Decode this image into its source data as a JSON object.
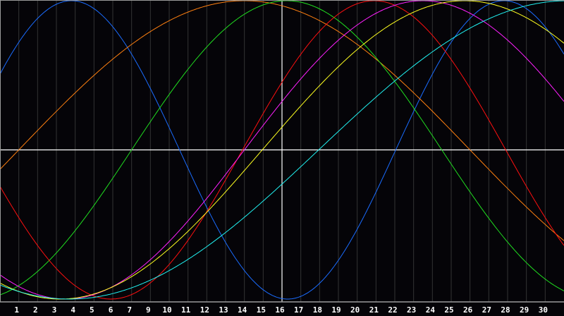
{
  "chart_data": {
    "type": "line",
    "xlim": [
      0,
      30
    ],
    "ylim": [
      -100,
      100
    ],
    "grid": true,
    "today_marker_day": 15,
    "x_tick_labels": [
      "1",
      "2",
      "3",
      "4",
      "5",
      "6",
      "7",
      "9",
      "10",
      "11",
      "12",
      "13",
      "14",
      "15",
      "16",
      "17",
      "18",
      "19",
      "20",
      "21",
      "22",
      "23",
      "24",
      "25",
      "26",
      "27",
      "28",
      "29",
      "30"
    ],
    "series": [
      {
        "color": "#1a6cff",
        "period_days": 23,
        "peak_day": 3.8
      },
      {
        "color": "#ff8010",
        "period_days": 48,
        "peak_day": 13.0
      },
      {
        "color": "#20e020",
        "period_days": 33,
        "peak_day": 15.25
      },
      {
        "color": "#ff1010",
        "period_days": 28,
        "peak_day": 19.9
      },
      {
        "color": "#ff20ff",
        "period_days": 38,
        "peak_day": 22.5
      },
      {
        "color": "#ffff20",
        "period_days": 43,
        "peak_day": 24.7
      },
      {
        "color": "#20f0f0",
        "period_days": 53,
        "peak_day": 30.2
      }
    ],
    "colors": {
      "background": "#050408",
      "grid": "#333333",
      "axis": "#9a9a9a",
      "marker": "#ffffff"
    }
  }
}
